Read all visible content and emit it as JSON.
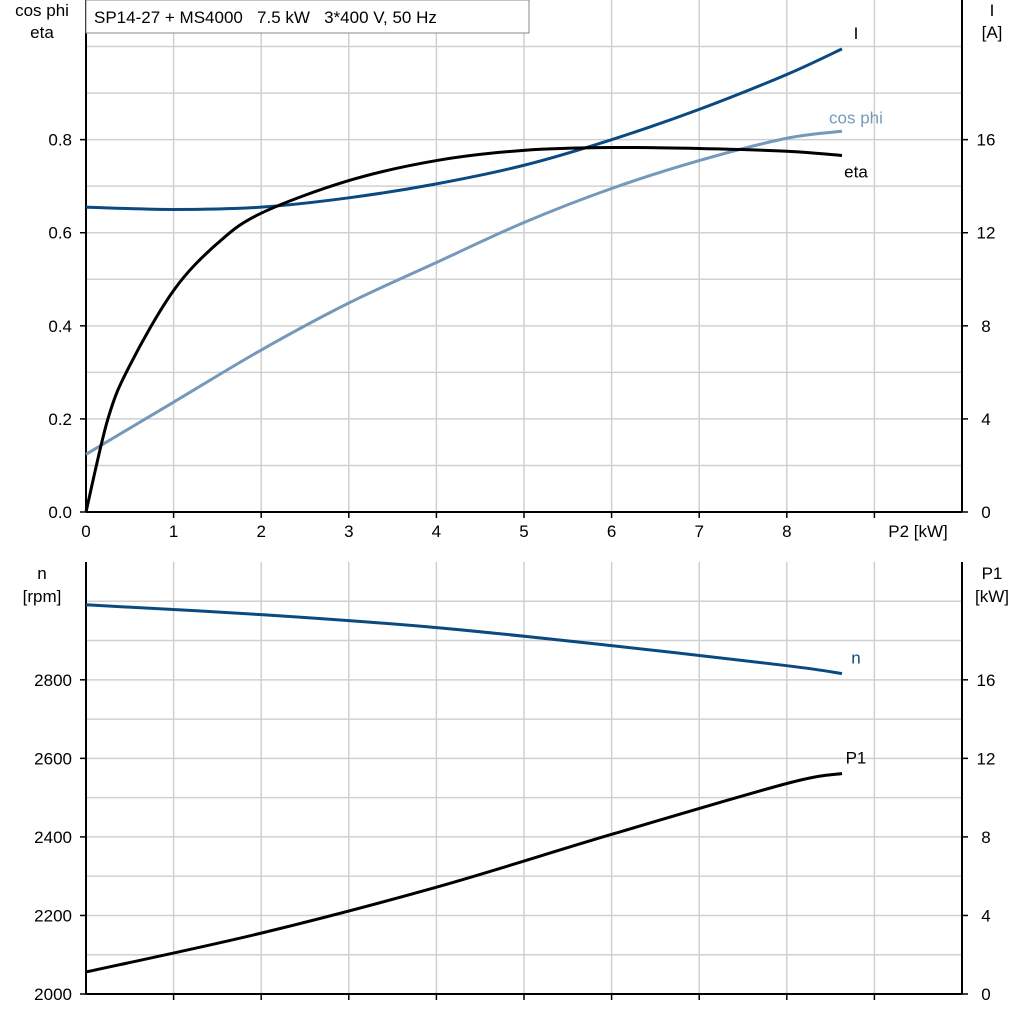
{
  "chart_data": [
    {
      "type": "line",
      "title": "SP14-27 + MS4000   7.5 kW   3*400 V, 50 Hz",
      "xlabel": "P2 [kW]",
      "ylabel_left": [
        "cos phi",
        "eta"
      ],
      "ylabel_right": [
        "I",
        "[A]"
      ],
      "xlim": [
        0,
        10
      ],
      "ylim_left": [
        0,
        1.1
      ],
      "ylim_right": [
        0,
        22
      ],
      "x_ticks": [
        "0",
        "1",
        "2",
        "3",
        "4",
        "5",
        "6",
        "7",
        "8"
      ],
      "y_ticks_left": [
        "0.0",
        "0.2",
        "0.4",
        "0.6",
        "0.8"
      ],
      "y_ticks_right": [
        "0",
        "4",
        "8",
        "12",
        "16"
      ],
      "grid": true,
      "series": [
        {
          "name": "I",
          "axis": "right",
          "color": "#0a4a80",
          "x": [
            0,
            1,
            2,
            3,
            4,
            5,
            6,
            7,
            8,
            8.63
          ],
          "y": [
            13.1,
            13.0,
            13.1,
            13.5,
            14.1,
            14.9,
            16.0,
            17.3,
            18.8,
            19.9
          ]
        },
        {
          "name": "cos phi",
          "axis": "left",
          "color": "#7499bb",
          "x": [
            0,
            1,
            2,
            3,
            4,
            5,
            6,
            7,
            8,
            8.63
          ],
          "y": [
            0.124,
            0.236,
            0.348,
            0.449,
            0.536,
            0.622,
            0.695,
            0.755,
            0.803,
            0.818
          ]
        },
        {
          "name": "eta",
          "axis": "left",
          "color": "#000000",
          "x": [
            0,
            0.25,
            0.5,
            1,
            1.5,
            2,
            3,
            4,
            5,
            6,
            7,
            8,
            8.63
          ],
          "y": [
            0,
            0.2,
            0.315,
            0.476,
            0.577,
            0.642,
            0.712,
            0.755,
            0.777,
            0.783,
            0.781,
            0.775,
            0.766
          ]
        }
      ]
    },
    {
      "type": "line",
      "xlim": [
        0,
        10
      ],
      "ylabel_left": [
        "n",
        "[rpm]"
      ],
      "ylabel_right": [
        "P1",
        "[kW]"
      ],
      "ylim_left": [
        2000,
        3100
      ],
      "ylim_right": [
        0,
        22
      ],
      "y_ticks_left": [
        "2000",
        "2200",
        "2400",
        "2600",
        "2800"
      ],
      "y_ticks_right": [
        "0",
        "4",
        "8",
        "12",
        "16"
      ],
      "grid": true,
      "series": [
        {
          "name": "n",
          "axis": "left",
          "color": "#0a4a80",
          "x": [
            0,
            2,
            4,
            6,
            8,
            8.63
          ],
          "y": [
            2991,
            2966,
            2933,
            2887,
            2836,
            2816
          ]
        },
        {
          "name": "P1",
          "axis": "right",
          "color": "#000000",
          "x": [
            0,
            2,
            4,
            6,
            8,
            8.63
          ],
          "y": [
            1.12,
            3.1,
            5.44,
            8.13,
            10.72,
            11.23
          ]
        }
      ]
    }
  ]
}
